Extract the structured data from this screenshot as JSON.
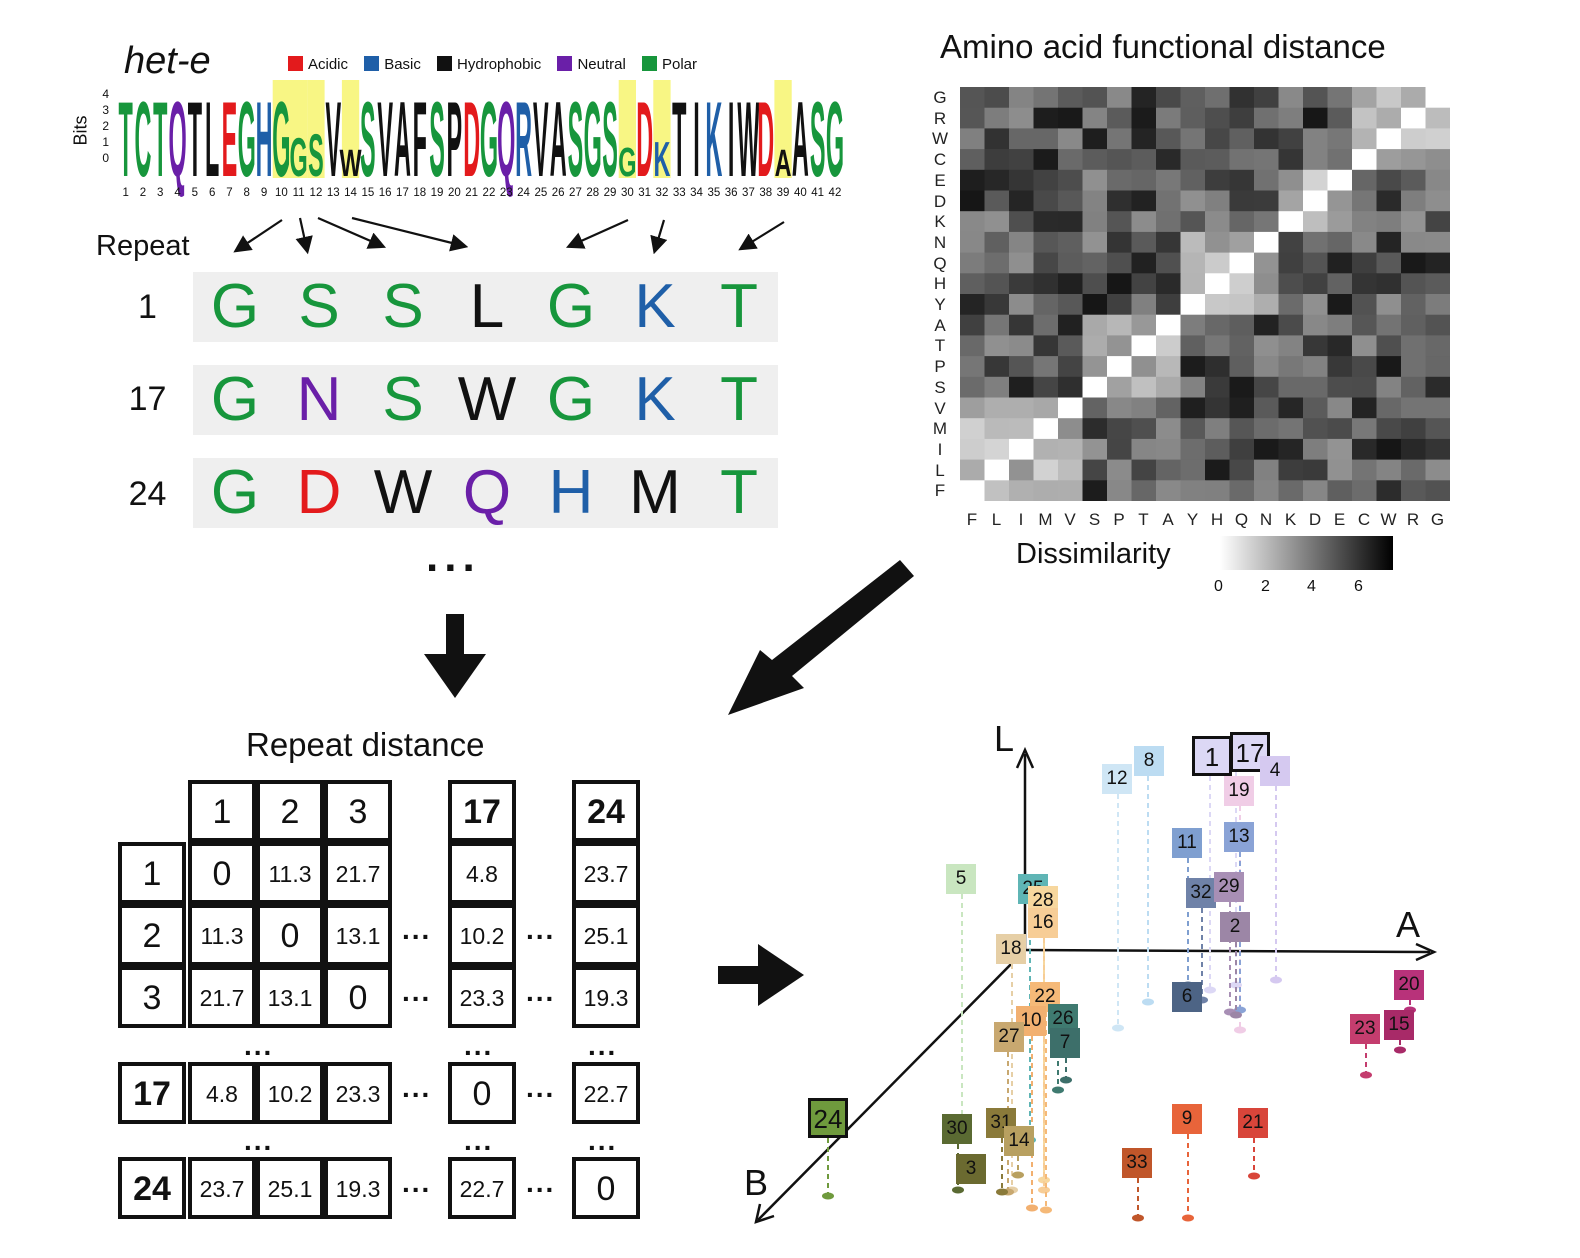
{
  "logo": {
    "title": "het-e",
    "ylabel": "Bits",
    "yticks": [
      "4",
      "3",
      "2",
      "1",
      "0"
    ],
    "legend": [
      {
        "label": "Acidic",
        "color": "#e31a1c"
      },
      {
        "label": "Basic",
        "color": "#1f5fa8"
      },
      {
        "label": "Hydrophobic",
        "color": "#111111"
      },
      {
        "label": "Neutral",
        "color": "#6a1fa8"
      },
      {
        "label": "Polar",
        "color": "#17963c"
      }
    ],
    "sequence": [
      "T",
      "C",
      "T",
      "Q",
      "T",
      "L",
      "E",
      "G",
      "H",
      "G",
      "G",
      "S",
      "V",
      "W",
      "S",
      "V",
      "A",
      "F",
      "S",
      "P",
      "D",
      "G",
      "Q",
      "R",
      "V",
      "A",
      "S",
      "G",
      "S",
      "G",
      "D",
      "K",
      "T",
      "I",
      "K",
      "I",
      "W",
      "D",
      "A",
      "A",
      "S",
      "G"
    ],
    "colors": [
      "g",
      "g",
      "g",
      "n",
      "h",
      "h",
      "a",
      "g",
      "b",
      "g",
      "g",
      "g",
      "h",
      "h",
      "g",
      "h",
      "h",
      "h",
      "g",
      "h",
      "a",
      "g",
      "n",
      "b",
      "h",
      "h",
      "g",
      "g",
      "g",
      "g",
      "a",
      "b",
      "h",
      "h",
      "b",
      "h",
      "h",
      "a",
      "h",
      "h",
      "g",
      "g"
    ],
    "positions": [
      "1",
      "2",
      "3",
      "4",
      "5",
      "6",
      "7",
      "8",
      "9",
      "10",
      "11",
      "12",
      "13",
      "14",
      "15",
      "16",
      "17",
      "18",
      "19",
      "20",
      "21",
      "22",
      "23",
      "24",
      "25",
      "26",
      "27",
      "28",
      "29",
      "30",
      "31",
      "32",
      "33",
      "34",
      "35",
      "36",
      "37",
      "38",
      "39",
      "40",
      "41",
      "42"
    ],
    "highlighted": [
      "10",
      "11",
      "12",
      "14",
      "30",
      "32",
      "39"
    ]
  },
  "repeats": {
    "label": "Repeat",
    "rows": [
      {
        "num": "1",
        "letters": [
          "G",
          "S",
          "S",
          "L",
          "G",
          "K",
          "T"
        ],
        "colors": [
          "#17963c",
          "#17963c",
          "#17963c",
          "#111111",
          "#17963c",
          "#1f5fa8",
          "#17963c"
        ]
      },
      {
        "num": "17",
        "letters": [
          "G",
          "N",
          "S",
          "W",
          "G",
          "K",
          "T"
        ],
        "colors": [
          "#17963c",
          "#6a1fa8",
          "#17963c",
          "#111111",
          "#17963c",
          "#1f5fa8",
          "#17963c"
        ]
      },
      {
        "num": "24",
        "letters": [
          "G",
          "D",
          "W",
          "Q",
          "H",
          "M",
          "T"
        ],
        "colors": [
          "#17963c",
          "#e31a1c",
          "#111111",
          "#6a1fa8",
          "#1f5fa8",
          "#111111",
          "#17963c"
        ]
      }
    ],
    "ellipsis": "..."
  },
  "heatmap": {
    "title": "Amino acid functional distance",
    "row_labels": [
      "G",
      "R",
      "W",
      "C",
      "E",
      "D",
      "K",
      "N",
      "Q",
      "H",
      "Y",
      "A",
      "T",
      "P",
      "S",
      "V",
      "M",
      "I",
      "L",
      "F"
    ],
    "col_labels": [
      "F",
      "L",
      "I",
      "M",
      "V",
      "S",
      "P",
      "T",
      "A",
      "Y",
      "H",
      "Q",
      "N",
      "K",
      "D",
      "E",
      "C",
      "W",
      "R",
      "G"
    ],
    "legend_title": "Dissimilarity",
    "legend_ticks": [
      "0",
      "2",
      "4",
      "6"
    ]
  },
  "distance_table": {
    "title": "Repeat distance",
    "col_headers": [
      "1",
      "2",
      "3",
      "17",
      "24"
    ],
    "rows": [
      {
        "header": "1",
        "values": [
          "0",
          "11.3",
          "21.7",
          "4.8",
          "23.7"
        ]
      },
      {
        "header": "2",
        "values": [
          "11.3",
          "0",
          "13.1",
          "10.2",
          "25.1"
        ]
      },
      {
        "header": "3",
        "values": [
          "21.7",
          "13.1",
          "0",
          "23.3",
          "19.3"
        ]
      },
      {
        "header": "17",
        "values": [
          "4.8",
          "10.2",
          "23.3",
          "0",
          "22.7"
        ]
      },
      {
        "header": "24",
        "values": [
          "23.7",
          "25.1",
          "19.3",
          "22.7",
          "0"
        ]
      }
    ],
    "ellipsis": "..."
  },
  "scatter3d": {
    "axis_labels": {
      "L": "L",
      "A": "A",
      "B": "B"
    },
    "points": [
      {
        "label": "1",
        "color": "#dcd8f5"
      },
      {
        "label": "17",
        "color": "#dcd8f5"
      },
      {
        "label": "12",
        "color": "#cfe6f5"
      },
      {
        "label": "8",
        "color": "#bcdcf2"
      },
      {
        "label": "19",
        "color": "#f0cde6"
      },
      {
        "label": "4",
        "color": "#d5c9f0"
      },
      {
        "label": "11",
        "color": "#7f9fd0"
      },
      {
        "label": "13",
        "color": "#8aa3d6"
      },
      {
        "label": "5",
        "color": "#c9e6c0"
      },
      {
        "label": "25",
        "color": "#5fb5b5"
      },
      {
        "label": "28",
        "color": "#f7d79e"
      },
      {
        "label": "16",
        "color": "#f7cd96"
      },
      {
        "label": "32",
        "color": "#6f82a8"
      },
      {
        "label": "29",
        "color": "#a88fb5"
      },
      {
        "label": "2",
        "color": "#9c86a6"
      },
      {
        "label": "18",
        "color": "#e6cfa6"
      },
      {
        "label": "6",
        "color": "#4d6485"
      },
      {
        "label": "22",
        "color": "#f5b978"
      },
      {
        "label": "10",
        "color": "#f2b070"
      },
      {
        "label": "26",
        "color": "#3f7a70"
      },
      {
        "label": "27",
        "color": "#c8a870"
      },
      {
        "label": "7",
        "color": "#3d6f6a"
      },
      {
        "label": "20",
        "color": "#b8327a"
      },
      {
        "label": "23",
        "color": "#c43d6e"
      },
      {
        "label": "15",
        "color": "#a82a68"
      },
      {
        "label": "24",
        "color": "#6f9a3d"
      },
      {
        "label": "30",
        "color": "#5a6a32"
      },
      {
        "label": "31",
        "color": "#8a7a3a"
      },
      {
        "label": "14",
        "color": "#b8a060"
      },
      {
        "label": "3",
        "color": "#6b6a30"
      },
      {
        "label": "9",
        "color": "#e8643a"
      },
      {
        "label": "21",
        "color": "#d8453a"
      },
      {
        "label": "33",
        "color": "#c0562a"
      }
    ]
  }
}
